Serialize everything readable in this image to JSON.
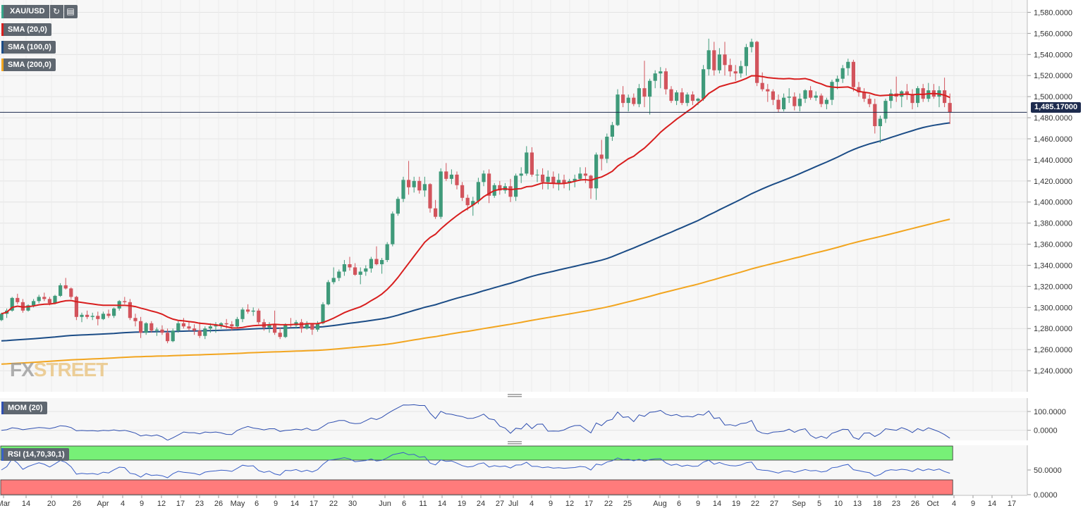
{
  "symbol": {
    "name": "XAU/USD",
    "swatch_color": "#36a68a",
    "tools": [
      "refresh-icon",
      "calendar-icon"
    ]
  },
  "indicators": {
    "sma20": {
      "label": "SMA (20,0)",
      "color": "#d81e1e"
    },
    "sma100": {
      "label": "SMA (100,0)",
      "color": "#1b4c86"
    },
    "sma200": {
      "label": "SMA (200,0)",
      "color": "#f2a51f"
    }
  },
  "last_price": {
    "label": "1,485.17000",
    "value": 1485.17
  },
  "brand": {
    "fx": "FX",
    "street": "STREET"
  },
  "oscillators": {
    "mom": {
      "label": "MOM (20)",
      "color": "#2f4fb0"
    },
    "rsi": {
      "label": "RSI (14,70,30,1)",
      "color": "#3a5fc7",
      "overbought_color": "#77f077",
      "oversold_color": "#ff7b7b"
    }
  },
  "chart_data": {
    "type": "candlestick",
    "title": "XAU/USD",
    "ylim": [
      1220,
      1585
    ],
    "price_ticks": [
      "1,240.0000",
      "1,260.0000",
      "1,280.0000",
      "1,300.0000",
      "1,320.0000",
      "1,340.0000",
      "1,360.0000",
      "1,380.0000",
      "1,400.0000",
      "1,420.0000",
      "1,440.0000",
      "1,460.0000",
      "1,480.0000",
      "1,500.0000",
      "1,520.0000",
      "1,540.0000",
      "1,560.0000",
      "1,580.0000"
    ],
    "x_ticks": [
      "Mar",
      "14",
      "20",
      "26",
      "Apr",
      "4",
      "9",
      "12",
      "17",
      "23",
      "26",
      "May",
      "6",
      "9",
      "14",
      "17",
      "22",
      "30",
      "Jun",
      "6",
      "11",
      "14",
      "19",
      "24",
      "27",
      "Jul",
      "4",
      "9",
      "12",
      "17",
      "22",
      "25",
      "Aug",
      "6",
      "9",
      "14",
      "19",
      "22",
      "27",
      "Sep",
      "5",
      "10",
      "13",
      "18",
      "23",
      "26",
      "Oct",
      "4",
      "9",
      "14",
      "17"
    ],
    "candles": [
      [
        1288,
        1295,
        1287,
        1294
      ],
      [
        1294,
        1299,
        1290,
        1297
      ],
      [
        1297,
        1310,
        1296,
        1309
      ],
      [
        1309,
        1313,
        1303,
        1305
      ],
      [
        1305,
        1308,
        1295,
        1297
      ],
      [
        1297,
        1303,
        1296,
        1302
      ],
      [
        1302,
        1308,
        1300,
        1306
      ],
      [
        1306,
        1312,
        1304,
        1310
      ],
      [
        1310,
        1314,
        1306,
        1308
      ],
      [
        1308,
        1310,
        1302,
        1304
      ],
      [
        1304,
        1312,
        1303,
        1311
      ],
      [
        1311,
        1323,
        1310,
        1321
      ],
      [
        1321,
        1328,
        1317,
        1318
      ],
      [
        1318,
        1319,
        1308,
        1310
      ],
      [
        1310,
        1311,
        1288,
        1291
      ],
      [
        1291,
        1295,
        1286,
        1293
      ],
      [
        1293,
        1297,
        1289,
        1291
      ],
      [
        1291,
        1295,
        1288,
        1292
      ],
      [
        1292,
        1296,
        1283,
        1289
      ],
      [
        1289,
        1296,
        1288,
        1294
      ],
      [
        1294,
        1298,
        1290,
        1292
      ],
      [
        1292,
        1300,
        1290,
        1299
      ],
      [
        1299,
        1307,
        1297,
        1306
      ],
      [
        1306,
        1310,
        1303,
        1305
      ],
      [
        1305,
        1308,
        1288,
        1290
      ],
      [
        1290,
        1294,
        1282,
        1287
      ],
      [
        1287,
        1291,
        1271,
        1276
      ],
      [
        1276,
        1286,
        1274,
        1285
      ],
      [
        1285,
        1287,
        1276,
        1278
      ],
      [
        1278,
        1281,
        1273,
        1279
      ],
      [
        1279,
        1283,
        1274,
        1276
      ],
      [
        1276,
        1280,
        1266,
        1268
      ],
      [
        1268,
        1280,
        1267,
        1278
      ],
      [
        1278,
        1287,
        1276,
        1285
      ],
      [
        1285,
        1290,
        1280,
        1282
      ],
      [
        1282,
        1287,
        1278,
        1280
      ],
      [
        1280,
        1284,
        1274,
        1278
      ],
      [
        1278,
        1286,
        1271,
        1273
      ],
      [
        1273,
        1282,
        1270,
        1280
      ],
      [
        1280,
        1285,
        1276,
        1282
      ],
      [
        1282,
        1286,
        1276,
        1283
      ],
      [
        1283,
        1286,
        1280,
        1285
      ],
      [
        1285,
        1289,
        1280,
        1284
      ],
      [
        1284,
        1287,
        1278,
        1282
      ],
      [
        1282,
        1291,
        1280,
        1289
      ],
      [
        1289,
        1300,
        1286,
        1298
      ],
      [
        1298,
        1303,
        1294,
        1296
      ],
      [
        1296,
        1300,
        1292,
        1297
      ],
      [
        1297,
        1299,
        1284,
        1286
      ],
      [
        1286,
        1289,
        1278,
        1281
      ],
      [
        1281,
        1286,
        1276,
        1284
      ],
      [
        1284,
        1297,
        1274,
        1276
      ],
      [
        1276,
        1281,
        1270,
        1272
      ],
      [
        1272,
        1285,
        1271,
        1284
      ],
      [
        1284,
        1290,
        1281,
        1283
      ],
      [
        1283,
        1288,
        1280,
        1286
      ],
      [
        1286,
        1289,
        1276,
        1280
      ],
      [
        1280,
        1287,
        1279,
        1284
      ],
      [
        1284,
        1285,
        1274,
        1279
      ],
      [
        1279,
        1287,
        1277,
        1285
      ],
      [
        1285,
        1305,
        1284,
        1303
      ],
      [
        1303,
        1326,
        1302,
        1324
      ],
      [
        1324,
        1338,
        1322,
        1328
      ],
      [
        1328,
        1336,
        1325,
        1334
      ],
      [
        1334,
        1345,
        1330,
        1341
      ],
      [
        1341,
        1348,
        1335,
        1338
      ],
      [
        1338,
        1342,
        1330,
        1331
      ],
      [
        1331,
        1338,
        1322,
        1334
      ],
      [
        1334,
        1340,
        1330,
        1337
      ],
      [
        1337,
        1348,
        1333,
        1346
      ],
      [
        1346,
        1358,
        1340,
        1341
      ],
      [
        1341,
        1347,
        1332,
        1345
      ],
      [
        1345,
        1362,
        1343,
        1360
      ],
      [
        1360,
        1391,
        1358,
        1389
      ],
      [
        1389,
        1405,
        1387,
        1403
      ],
      [
        1403,
        1424,
        1400,
        1421
      ],
      [
        1421,
        1439,
        1407,
        1414
      ],
      [
        1414,
        1424,
        1409,
        1420
      ],
      [
        1420,
        1424,
        1408,
        1411
      ],
      [
        1411,
        1424,
        1405,
        1417
      ],
      [
        1417,
        1418,
        1390,
        1394
      ],
      [
        1394,
        1402,
        1384,
        1386
      ],
      [
        1386,
        1432,
        1384,
        1429
      ],
      [
        1429,
        1437,
        1420,
        1422
      ],
      [
        1422,
        1431,
        1417,
        1426
      ],
      [
        1426,
        1429,
        1412,
        1416
      ],
      [
        1416,
        1419,
        1401,
        1404
      ],
      [
        1404,
        1407,
        1392,
        1397
      ],
      [
        1397,
        1405,
        1387,
        1401
      ],
      [
        1401,
        1423,
        1398,
        1419
      ],
      [
        1419,
        1430,
        1415,
        1427
      ],
      [
        1427,
        1431,
        1399,
        1406
      ],
      [
        1406,
        1418,
        1404,
        1416
      ],
      [
        1416,
        1420,
        1407,
        1411
      ],
      [
        1411,
        1418,
        1408,
        1415
      ],
      [
        1415,
        1422,
        1400,
        1405
      ],
      [
        1405,
        1427,
        1401,
        1425
      ],
      [
        1425,
        1433,
        1418,
        1427
      ],
      [
        1427,
        1453,
        1425,
        1447
      ],
      [
        1447,
        1452,
        1424,
        1426
      ],
      [
        1426,
        1431,
        1419,
        1426
      ],
      [
        1426,
        1432,
        1412,
        1419
      ],
      [
        1419,
        1430,
        1412,
        1424
      ],
      [
        1424,
        1429,
        1413,
        1418
      ],
      [
        1418,
        1427,
        1411,
        1421
      ],
      [
        1421,
        1426,
        1413,
        1418
      ],
      [
        1418,
        1422,
        1411,
        1420
      ],
      [
        1420,
        1426,
        1414,
        1422
      ],
      [
        1422,
        1433,
        1420,
        1427
      ],
      [
        1427,
        1433,
        1418,
        1425
      ],
      [
        1425,
        1426,
        1403,
        1413
      ],
      [
        1413,
        1447,
        1402,
        1445
      ],
      [
        1445,
        1459,
        1430,
        1441
      ],
      [
        1441,
        1465,
        1437,
        1462
      ],
      [
        1462,
        1476,
        1458,
        1473
      ],
      [
        1473,
        1507,
        1472,
        1502
      ],
      [
        1502,
        1510,
        1490,
        1494
      ],
      [
        1494,
        1502,
        1486,
        1499
      ],
      [
        1499,
        1503,
        1491,
        1493
      ],
      [
        1493,
        1512,
        1490,
        1508
      ],
      [
        1508,
        1534,
        1490,
        1500
      ],
      [
        1500,
        1517,
        1483,
        1515
      ],
      [
        1515,
        1525,
        1508,
        1522
      ],
      [
        1522,
        1528,
        1508,
        1524
      ],
      [
        1524,
        1527,
        1502,
        1507
      ],
      [
        1507,
        1510,
        1494,
        1496
      ],
      [
        1496,
        1506,
        1492,
        1504
      ],
      [
        1504,
        1508,
        1492,
        1494
      ],
      [
        1494,
        1504,
        1491,
        1502
      ],
      [
        1502,
        1505,
        1492,
        1496
      ],
      [
        1496,
        1499,
        1492,
        1498
      ],
      [
        1498,
        1530,
        1496,
        1526
      ],
      [
        1526,
        1555,
        1520,
        1544
      ],
      [
        1544,
        1552,
        1520,
        1525
      ],
      [
        1525,
        1546,
        1522,
        1540
      ],
      [
        1540,
        1552,
        1520,
        1530
      ],
      [
        1530,
        1536,
        1519,
        1524
      ],
      [
        1524,
        1530,
        1515,
        1522
      ],
      [
        1522,
        1534,
        1518,
        1529
      ],
      [
        1529,
        1550,
        1520,
        1547
      ],
      [
        1547,
        1555,
        1542,
        1552
      ],
      [
        1552,
        1553,
        1510,
        1513
      ],
      [
        1513,
        1523,
        1505,
        1507
      ],
      [
        1507,
        1512,
        1495,
        1505
      ],
      [
        1505,
        1507,
        1492,
        1497
      ],
      [
        1497,
        1502,
        1485,
        1488
      ],
      [
        1488,
        1503,
        1486,
        1499
      ],
      [
        1499,
        1508,
        1494,
        1500
      ],
      [
        1500,
        1504,
        1487,
        1491
      ],
      [
        1491,
        1503,
        1486,
        1498
      ],
      [
        1498,
        1507,
        1494,
        1506
      ],
      [
        1506,
        1510,
        1497,
        1499
      ],
      [
        1499,
        1505,
        1496,
        1501
      ],
      [
        1501,
        1503,
        1490,
        1493
      ],
      [
        1493,
        1499,
        1488,
        1497
      ],
      [
        1497,
        1516,
        1492,
        1514
      ],
      [
        1514,
        1520,
        1507,
        1517
      ],
      [
        1517,
        1530,
        1513,
        1527
      ],
      [
        1527,
        1536,
        1520,
        1533
      ],
      [
        1533,
        1535,
        1505,
        1509
      ],
      [
        1509,
        1514,
        1500,
        1504
      ],
      [
        1504,
        1508,
        1495,
        1498
      ],
      [
        1498,
        1502,
        1490,
        1493
      ],
      [
        1493,
        1498,
        1465,
        1472
      ],
      [
        1472,
        1482,
        1456,
        1479
      ],
      [
        1479,
        1498,
        1475,
        1496
      ],
      [
        1496,
        1507,
        1489,
        1503
      ],
      [
        1503,
        1519,
        1495,
        1500
      ],
      [
        1500,
        1506,
        1490,
        1505
      ],
      [
        1505,
        1512,
        1497,
        1502
      ],
      [
        1502,
        1507,
        1488,
        1494
      ],
      [
        1494,
        1510,
        1490,
        1508
      ],
      [
        1508,
        1512,
        1495,
        1498
      ],
      [
        1498,
        1513,
        1495,
        1506
      ],
      [
        1506,
        1512,
        1498,
        1500
      ],
      [
        1500,
        1510,
        1490,
        1506
      ],
      [
        1506,
        1518,
        1490,
        1494
      ],
      [
        1494,
        1503,
        1474,
        1485
      ]
    ],
    "mom_ticks": [
      "100.0000",
      "0.0000"
    ],
    "mom_ylim": [
      -50,
      160
    ],
    "rsi_ticks": [
      "50.0000",
      "0.0000"
    ],
    "rsi_ylim": [
      0,
      100
    ],
    "rsi_levels": [
      70,
      30
    ]
  }
}
